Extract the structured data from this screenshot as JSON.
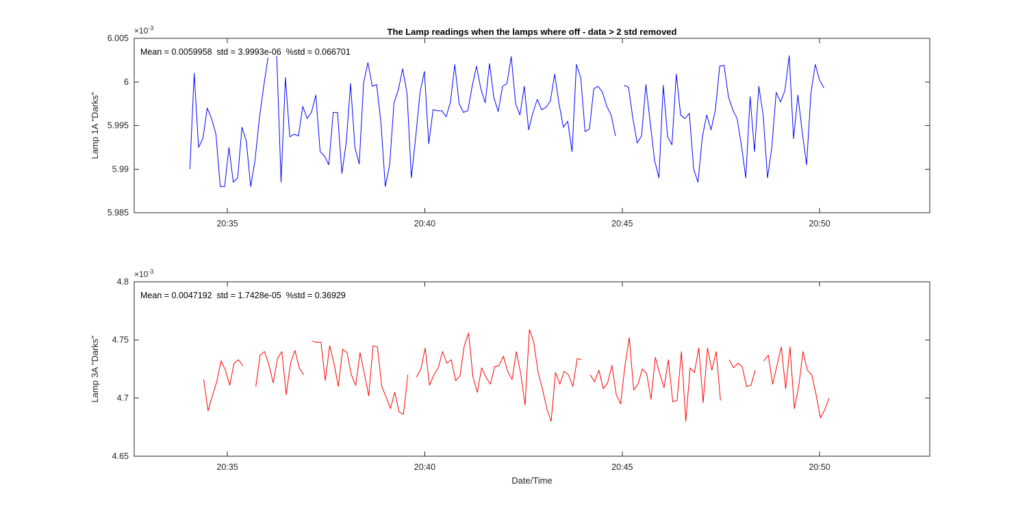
{
  "figure": {
    "title": "The Lamp readings when the lamps where off - data > 2 std removed",
    "xlabel": "Date/Time",
    "background_color": "#ffffff",
    "axes_color": "#262626"
  },
  "chart_data": [
    {
      "type": "line",
      "series_name": "Lamp 1A Darks",
      "ylabel": "Lamp 1A \"Darks\"",
      "annotation": "Mean = 0.0059958  std = 3.9993e-06  %std = 0.066701",
      "exponent_base": "×10",
      "exponent_power": "-3",
      "line_color": "#0000ff",
      "grid": false,
      "legend": "none",
      "x_axis": {
        "unit": "minutes after 20:00",
        "lim": [
          32.64,
          52.79
        ],
        "tick_values": [
          35,
          40,
          45,
          50
        ],
        "tick_labels": [
          "20:35",
          "20:40",
          "20:45",
          "20:50"
        ]
      },
      "y_axis": {
        "unit": "1e-3",
        "lim": [
          5.985,
          6.005
        ],
        "tick_values": [
          5.985,
          5.99,
          5.995,
          6,
          6.005
        ],
        "tick_labels": [
          "5.985",
          "5.99",
          "5.995",
          "6",
          "6.005"
        ]
      },
      "x_start": 34.05,
      "x_step": 0.11,
      "values": [
        5.99,
        6.001,
        5.9925,
        5.9935,
        5.997,
        5.9958,
        5.994,
        5.988,
        5.988,
        5.9925,
        5.9885,
        5.989,
        5.9948,
        5.9932,
        5.988,
        5.991,
        5.9958,
        5.9995,
        6.0028,
        null,
        6.003,
        5.9885,
        6.0005,
        5.9937,
        5.994,
        5.9938,
        5.9972,
        5.9958,
        5.9965,
        5.9985,
        5.992,
        5.9915,
        5.9905,
        5.9965,
        5.9965,
        5.9895,
        5.993,
        5.9998,
        5.9925,
        5.9906,
        5.9999,
        6.0022,
        5.9995,
        5.9997,
        5.9953,
        5.988,
        5.9905,
        5.9976,
        5.9991,
        6.0015,
        5.9987,
        5.989,
        5.9937,
        5.9988,
        6.0012,
        5.9929,
        5.9968,
        5.9967,
        5.9967,
        5.996,
        5.9977,
        6.002,
        5.9975,
        5.9965,
        5.9967,
        5.9995,
        6.0018,
        5.9992,
        5.9976,
        6.0021,
        5.9982,
        5.9966,
        5.9995,
        5.9998,
        6.0029,
        5.9975,
        5.9962,
        5.9995,
        5.9945,
        5.9965,
        5.998,
        5.9968,
        5.9971,
        5.9978,
        6.0009,
        5.9975,
        5.9948,
        5.9955,
        5.992,
        6.002,
        6.0005,
        5.9943,
        5.9946,
        5.9992,
        5.9995,
        5.9988,
        5.9972,
        5.9962,
        5.9938,
        null,
        5.9996,
        5.9994,
        5.9958,
        5.993,
        5.9938,
        5.9997,
        5.9953,
        5.991,
        5.989,
        5.9996,
        5.9937,
        5.9928,
        6.0009,
        5.9962,
        5.9958,
        5.9964,
        5.99,
        5.9885,
        5.9937,
        5.9962,
        5.9945,
        5.9968,
        6.0018,
        6.0019,
        5.9983,
        5.9968,
        5.9958,
        5.9927,
        5.989,
        5.9983,
        5.992,
        5.9995,
        5.9962,
        5.989,
        5.9925,
        5.9988,
        5.9977,
        5.999,
        6.003,
        5.9935,
        5.9985,
        5.9942,
        5.9905,
        5.9987,
        6.002,
        6.0002,
        5.9993
      ]
    },
    {
      "type": "line",
      "series_name": "Lamp 3A Darks",
      "ylabel": "Lamp 3A \"Darks\"",
      "annotation": "Mean = 0.0047192  std = 1.7428e-05  %std = 0.36929",
      "exponent_base": "×10",
      "exponent_power": "-3",
      "line_color": "#ff0000",
      "grid": false,
      "legend": "none",
      "x_axis": {
        "unit": "minutes after 20:00",
        "lim": [
          32.64,
          52.79
        ],
        "tick_values": [
          35,
          40,
          45,
          50
        ],
        "tick_labels": [
          "20:35",
          "20:40",
          "20:45",
          "20:50"
        ]
      },
      "y_axis": {
        "unit": "1e-3",
        "lim": [
          4.65,
          4.8
        ],
        "tick_values": [
          4.65,
          4.7,
          4.75,
          4.8
        ],
        "tick_labels": [
          "4.65",
          "4.7",
          "4.75",
          "4.8"
        ]
      },
      "x_start": 34.4,
      "x_step": 0.11,
      "values": [
        4.716,
        4.689,
        4.702,
        4.714,
        4.732,
        4.724,
        4.711,
        4.73,
        4.733,
        4.728,
        null,
        null,
        4.71,
        4.737,
        4.74,
        4.729,
        4.713,
        4.734,
        4.74,
        4.703,
        4.73,
        4.741,
        4.726,
        4.72,
        null,
        4.749,
        4.748,
        4.748,
        4.715,
        4.745,
        4.73,
        4.71,
        4.742,
        4.739,
        4.72,
        4.711,
        4.739,
        4.721,
        4.702,
        4.745,
        4.744,
        4.71,
        4.701,
        4.691,
        4.705,
        4.688,
        4.686,
        4.72,
        null,
        4.718,
        4.725,
        4.743,
        4.711,
        4.72,
        4.726,
        4.74,
        4.73,
        4.733,
        4.715,
        4.719,
        4.745,
        4.756,
        4.718,
        4.705,
        4.726,
        4.718,
        4.712,
        4.727,
        4.728,
        4.736,
        4.723,
        4.716,
        4.74,
        4.721,
        4.694,
        4.759,
        4.748,
        4.722,
        4.708,
        4.691,
        4.68,
        4.722,
        4.712,
        4.723,
        4.72,
        4.71,
        4.734,
        4.733,
        null,
        4.72,
        4.714,
        4.724,
        4.708,
        4.713,
        4.728,
        4.703,
        4.695,
        4.728,
        4.752,
        4.707,
        4.712,
        4.725,
        4.721,
        4.699,
        4.735,
        4.721,
        4.709,
        4.733,
        4.697,
        4.698,
        4.74,
        4.68,
        4.726,
        4.722,
        4.743,
        4.696,
        4.743,
        4.724,
        4.74,
        4.698,
        null,
        4.733,
        4.726,
        4.73,
        4.727,
        4.71,
        4.711,
        4.724,
        null,
        4.732,
        4.737,
        4.712,
        4.728,
        4.744,
        4.708,
        4.744,
        4.691,
        4.71,
        4.74,
        4.724,
        4.72,
        4.703,
        4.683,
        4.69,
        4.7
      ]
    }
  ]
}
